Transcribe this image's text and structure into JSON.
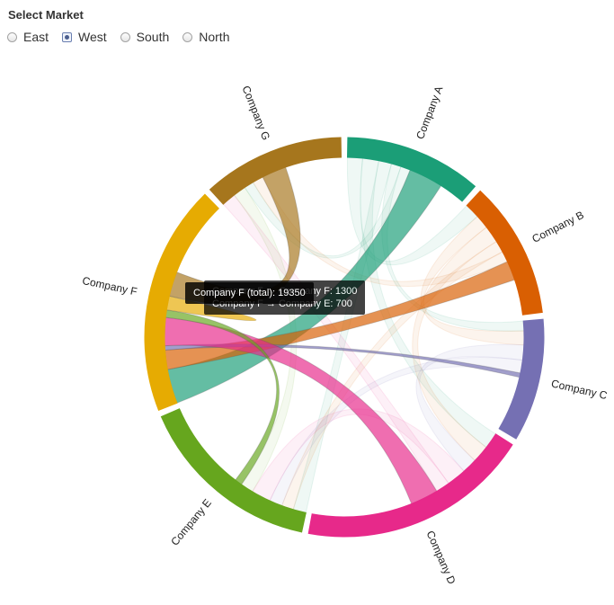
{
  "selector": {
    "title": "Select Market",
    "options": [
      {
        "label": "East",
        "checked": false
      },
      {
        "label": "West",
        "checked": true
      },
      {
        "label": "South",
        "checked": false
      },
      {
        "label": "North",
        "checked": false
      }
    ]
  },
  "tooltips": {
    "front": "Company F (total): 19350",
    "back_line1": "Company F → Company F: 1300",
    "back_line2": "Company F → Company E: 700"
  },
  "chart_data": {
    "type": "chord",
    "groups": [
      {
        "name": "Company A",
        "color": "#1b9e77",
        "total": 11500
      },
      {
        "name": "Company B",
        "color": "#d95f02",
        "total": 11500
      },
      {
        "name": "Company C",
        "color": "#7570b3",
        "total": 10300
      },
      {
        "name": "Company D",
        "color": "#e7298a",
        "total": 19500
      },
      {
        "name": "Company E",
        "color": "#66a61e",
        "total": 15600
      },
      {
        "name": "Company F",
        "color": "#e6ab02",
        "total": 19350
      },
      {
        "name": "Company G",
        "color": "#a6761d",
        "total": 11900
      }
    ],
    "highlighted": [
      {
        "from": "Company F",
        "to": "Company A",
        "value": 3200
      },
      {
        "from": "Company F",
        "to": "Company B",
        "value": 1800
      },
      {
        "from": "Company F",
        "to": "Company C",
        "value": 400
      },
      {
        "from": "Company F",
        "to": "Company D",
        "value": 2600
      },
      {
        "from": "Company F",
        "to": "Company E",
        "value": 700
      },
      {
        "from": "Company F",
        "to": "Company F",
        "value": 1300
      },
      {
        "from": "Company F",
        "to": "Company G",
        "value": 2300
      }
    ],
    "faded": [
      {
        "from": "Company A",
        "to": "Company B",
        "value": 1400
      },
      {
        "from": "Company A",
        "to": "Company D",
        "value": 1500
      },
      {
        "from": "Company A",
        "to": "Company E",
        "value": 1200
      },
      {
        "from": "Company A",
        "to": "Company C",
        "value": 900
      },
      {
        "from": "Company B",
        "to": "Company C",
        "value": 1300
      },
      {
        "from": "Company B",
        "to": "Company D",
        "value": 1600
      },
      {
        "from": "Company B",
        "to": "Company E",
        "value": 1100
      },
      {
        "from": "Company C",
        "to": "Company D",
        "value": 1400
      },
      {
        "from": "Company C",
        "to": "Company E",
        "value": 1200
      },
      {
        "from": "Company D",
        "to": "Company E",
        "value": 1800
      },
      {
        "from": "Company D",
        "to": "Company G",
        "value": 1300
      },
      {
        "from": "Company E",
        "to": "Company G",
        "value": 1200
      },
      {
        "from": "Company A",
        "to": "Company G",
        "value": 900
      },
      {
        "from": "Company B",
        "to": "Company G",
        "value": 1000
      }
    ]
  }
}
